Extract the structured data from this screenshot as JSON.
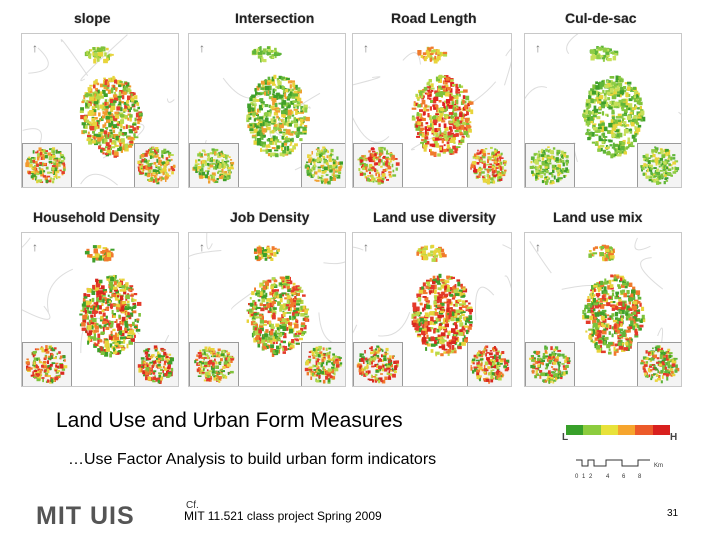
{
  "panels": [
    {
      "title": "slope",
      "palette": [
        "#3fa02a",
        "#7ec23a",
        "#b6d94a",
        "#e8d43b",
        "#f29a2e",
        "#e4402a"
      ]
    },
    {
      "title": "Intersection",
      "palette": [
        "#3fa02a",
        "#5fb53a",
        "#8fcd45",
        "#c6e05a",
        "#e8d43b",
        "#f0a030"
      ]
    },
    {
      "title": "Road Length",
      "palette": [
        "#e43a2a",
        "#f07a2c",
        "#e8d43b",
        "#b6d94a",
        "#7ec23a",
        "#e02020"
      ]
    },
    {
      "title": "Cul-de-sac",
      "palette": [
        "#3fa02a",
        "#5fb53a",
        "#8fcd45",
        "#c6e05a",
        "#7ec23a",
        "#e8d43b"
      ]
    },
    {
      "title": "Household Density",
      "palette": [
        "#e43a2a",
        "#f07a2c",
        "#e8d43b",
        "#3fa02a",
        "#7ec23a",
        "#d8281e"
      ]
    },
    {
      "title": "Job Density",
      "palette": [
        "#e43a2a",
        "#f07a2c",
        "#e8d43b",
        "#3fa02a",
        "#7ec23a",
        "#b6d94a"
      ]
    },
    {
      "title": "Land use diversity",
      "palette": [
        "#e43a2a",
        "#f07a2c",
        "#e8d43b",
        "#b6d94a",
        "#3fa02a",
        "#d8281e"
      ]
    },
    {
      "title": "Land use mix",
      "palette": [
        "#3fa02a",
        "#7ec23a",
        "#e8d43b",
        "#f07a2c",
        "#e43a2a",
        "#5fb53a"
      ]
    }
  ],
  "north_arrow_glyph": "↑",
  "heading": "Land Use and Urban Form Measures",
  "subheading": "…Use Factor Analysis to build urban form indicators",
  "legend": {
    "low_label": "L",
    "high_label": "H",
    "colors": [
      "#38a02a",
      "#8ccc3e",
      "#e8e23a",
      "#f6a52e",
      "#ec5a2a",
      "#d8201e"
    ]
  },
  "scale": {
    "ticks": [
      "0",
      "1",
      "2",
      "4",
      "6",
      "8"
    ],
    "unit": "Km"
  },
  "logo_text": "MIT UIS",
  "cf_mark": "Cf.",
  "footer": "MIT 11.521 class project Spring 2009",
  "page_number": "31"
}
